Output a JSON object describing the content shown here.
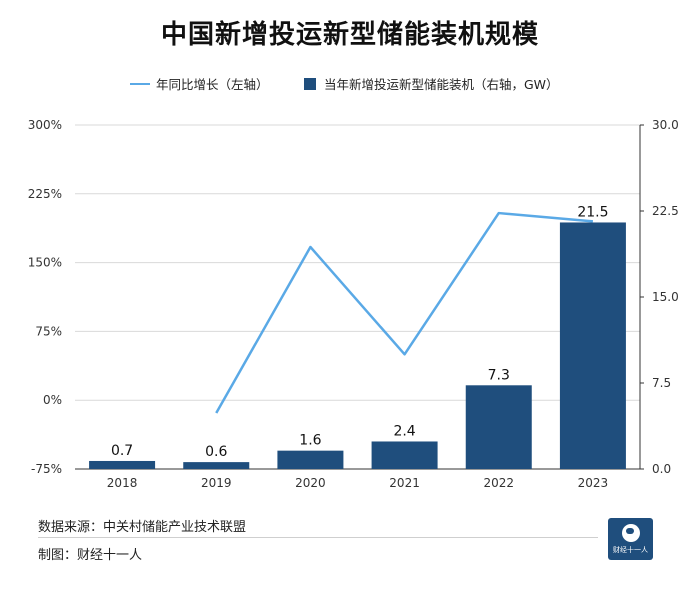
{
  "header": {
    "title": "中国新增投运新型储能装机规模"
  },
  "legend": {
    "line_label": "年同比增长（左轴）",
    "bar_label": "当年新增投运新型储能装机（右轴，GW）"
  },
  "footer": {
    "source": "数据来源：中关村储能产业技术联盟",
    "maker": "制图：财经十一人",
    "logo_text": "财经十一人"
  },
  "colors": {
    "bar": "#1f4e7d",
    "line": "#5aa9e6",
    "grid": "#d9d9d9"
  },
  "chart_data": {
    "type": "bar",
    "title": "中国新增投运新型储能装机规模",
    "categories": [
      "2018",
      "2019",
      "2020",
      "2021",
      "2022",
      "2023"
    ],
    "series": [
      {
        "name": "当年新增投运新型储能装机（右轴，GW）",
        "type": "bar",
        "axis": "right",
        "values": [
          0.7,
          0.6,
          1.6,
          2.4,
          7.3,
          21.5
        ]
      },
      {
        "name": "年同比增长（左轴）",
        "type": "line",
        "axis": "left",
        "values": [
          null,
          -14,
          167,
          50,
          204,
          195
        ]
      }
    ],
    "left_axis": {
      "ticks": [
        "300%",
        "225%",
        "150%",
        "75%",
        "0%",
        "-75%"
      ],
      "ylim": [
        -75,
        300
      ]
    },
    "right_axis": {
      "ticks": [
        "30.0",
        "22.5",
        "15.0",
        "7.5",
        "0.0"
      ],
      "ylim": [
        0,
        30
      ]
    },
    "grid": true
  }
}
